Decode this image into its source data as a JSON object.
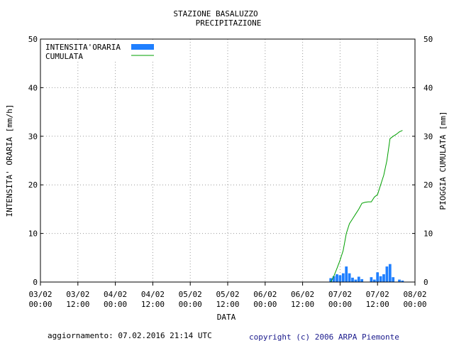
{
  "chart_data": {
    "type": "bar+line",
    "title_line1": "STAZIONE BASALUZZO",
    "title_line2": "PRECIPITAZIONE",
    "ylabel_left": "INTENSITA' ORARIA [mm/h]",
    "ylabel_right": "PIOGGIA CUMULATA [mm]",
    "xlabel": "DATA",
    "ylim": [
      0,
      50
    ],
    "yticks": [
      0,
      10,
      20,
      30,
      40,
      50
    ],
    "xlim_hours": [
      0,
      120
    ],
    "xticks": [
      {
        "hour": 0,
        "date": "03/02",
        "time": "00:00"
      },
      {
        "hour": 12,
        "date": "03/02",
        "time": "12:00"
      },
      {
        "hour": 24,
        "date": "04/02",
        "time": "00:00"
      },
      {
        "hour": 36,
        "date": "04/02",
        "time": "12:00"
      },
      {
        "hour": 48,
        "date": "05/02",
        "time": "00:00"
      },
      {
        "hour": 60,
        "date": "05/02",
        "time": "12:00"
      },
      {
        "hour": 72,
        "date": "06/02",
        "time": "00:00"
      },
      {
        "hour": 84,
        "date": "06/02",
        "time": "12:00"
      },
      {
        "hour": 96,
        "date": "07/02",
        "time": "00:00"
      },
      {
        "hour": 108,
        "date": "07/02",
        "time": "12:00"
      },
      {
        "hour": 120,
        "date": "08/02",
        "time": "00:00"
      }
    ],
    "legend": {
      "bar_label": "INTENSITA'ORARIA",
      "line_label": "CUMULATA",
      "position": "top-left"
    },
    "bar_color": "#1f7fff",
    "line_color": "#00a000",
    "grid_color": "#9a9a9a",
    "bar_width_hours": 0.85,
    "bars": [
      {
        "hour": 93,
        "value": 0.8
      },
      {
        "hour": 94,
        "value": 1.2
      },
      {
        "hour": 95,
        "value": 1.6
      },
      {
        "hour": 96,
        "value": 1.4
      },
      {
        "hour": 97,
        "value": 1.8
      },
      {
        "hour": 98,
        "value": 3.2
      },
      {
        "hour": 99,
        "value": 1.8
      },
      {
        "hour": 100,
        "value": 0.9
      },
      {
        "hour": 101,
        "value": 0.5
      },
      {
        "hour": 102,
        "value": 1.1
      },
      {
        "hour": 103,
        "value": 0.6
      },
      {
        "hour": 106,
        "value": 1.0
      },
      {
        "hour": 107,
        "value": 0.5
      },
      {
        "hour": 108,
        "value": 2.0
      },
      {
        "hour": 109,
        "value": 1.2
      },
      {
        "hour": 110,
        "value": 1.6
      },
      {
        "hour": 111,
        "value": 3.2
      },
      {
        "hour": 112,
        "value": 3.7
      },
      {
        "hour": 113,
        "value": 1.0
      },
      {
        "hour": 115,
        "value": 0.5
      },
      {
        "hour": 116,
        "value": 0.3
      }
    ],
    "cumulative": [
      {
        "hour": 0,
        "value": 0
      },
      {
        "hour": 93,
        "value": 0
      },
      {
        "hour": 94,
        "value": 1.2
      },
      {
        "hour": 95,
        "value": 2.8
      },
      {
        "hour": 96,
        "value": 4.5
      },
      {
        "hour": 97,
        "value": 6.5
      },
      {
        "hour": 98,
        "value": 10.0
      },
      {
        "hour": 99,
        "value": 12.0
      },
      {
        "hour": 100,
        "value": 13.0
      },
      {
        "hour": 101,
        "value": 14.0
      },
      {
        "hour": 102,
        "value": 15.0
      },
      {
        "hour": 103,
        "value": 16.2
      },
      {
        "hour": 104,
        "value": 16.4
      },
      {
        "hour": 105,
        "value": 16.5
      },
      {
        "hour": 106,
        "value": 16.5
      },
      {
        "hour": 107,
        "value": 17.5
      },
      {
        "hour": 108,
        "value": 18.0
      },
      {
        "hour": 109,
        "value": 20.0
      },
      {
        "hour": 110,
        "value": 22.0
      },
      {
        "hour": 111,
        "value": 25.0
      },
      {
        "hour": 112,
        "value": 29.5
      },
      {
        "hour": 113,
        "value": 30.0
      },
      {
        "hour": 114,
        "value": 30.4
      },
      {
        "hour": 115,
        "value": 30.9
      },
      {
        "hour": 116,
        "value": 31.2
      }
    ]
  },
  "footer": {
    "update_text": "aggiornamento: 07.02.2016 21:14 UTC",
    "copyright_text": "copyright (c) 2006 ARPA Piemonte"
  }
}
